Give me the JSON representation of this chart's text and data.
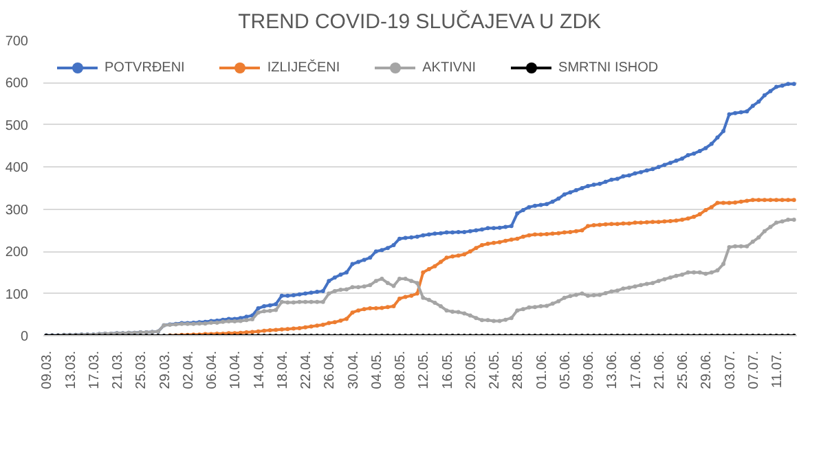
{
  "chart_data": {
    "type": "line",
    "title": "TREND COVID-19 SLUČAJEVA U ZDK",
    "categories": [
      "09.03.",
      null,
      null,
      null,
      "13.03.",
      null,
      null,
      null,
      "17.03.",
      null,
      null,
      null,
      "21.03.",
      null,
      null,
      null,
      "25.03.",
      null,
      null,
      null,
      "29.03.",
      null,
      null,
      null,
      "02.04.",
      null,
      null,
      null,
      "06.04.",
      null,
      null,
      null,
      "10.04.",
      null,
      null,
      null,
      "14.04.",
      null,
      null,
      null,
      "18.04.",
      null,
      null,
      null,
      "22.04.",
      null,
      null,
      null,
      "26.04.",
      null,
      null,
      null,
      "30.04.",
      null,
      null,
      null,
      "04.05.",
      null,
      null,
      null,
      "08.05.",
      null,
      null,
      null,
      "12.05.",
      null,
      null,
      null,
      "16.05.",
      null,
      null,
      null,
      "20.05.",
      null,
      null,
      null,
      "24.05.",
      null,
      null,
      null,
      "28.05.",
      null,
      null,
      null,
      "01.06.",
      null,
      null,
      null,
      "05.06.",
      null,
      null,
      null,
      "09.06.",
      null,
      null,
      null,
      "13.06.",
      null,
      null,
      null,
      "17.06.",
      null,
      null,
      null,
      "21.06.",
      null,
      null,
      null,
      "25.06.",
      null,
      null,
      null,
      "29.06.",
      null,
      null,
      null,
      "03.07.",
      null,
      null,
      null,
      "07.07.",
      null,
      null,
      null,
      "11.07.",
      null,
      null,
      null
    ],
    "series": [
      {
        "name": "POTVRĐENI",
        "color": "#4472c4",
        "values": [
          1,
          1,
          1,
          2,
          2,
          2,
          3,
          3,
          3,
          4,
          5,
          5,
          6,
          6,
          7,
          7,
          8,
          8,
          9,
          10,
          25,
          27,
          28,
          30,
          30,
          31,
          32,
          33,
          35,
          36,
          38,
          40,
          40,
          42,
          45,
          48,
          65,
          70,
          72,
          75,
          95,
          95,
          96,
          98,
          100,
          102,
          104,
          106,
          130,
          138,
          145,
          150,
          170,
          175,
          180,
          185,
          200,
          203,
          208,
          215,
          230,
          232,
          233,
          235,
          238,
          240,
          242,
          243,
          245,
          245,
          246,
          246,
          248,
          250,
          252,
          255,
          255,
          256,
          258,
          260,
          290,
          298,
          305,
          308,
          310,
          312,
          318,
          325,
          335,
          340,
          345,
          350,
          355,
          358,
          360,
          365,
          370,
          372,
          378,
          380,
          385,
          388,
          392,
          395,
          400,
          405,
          410,
          415,
          420,
          428,
          432,
          438,
          445,
          455,
          470,
          485,
          525,
          528,
          530,
          532,
          545,
          555,
          570,
          580,
          590,
          593,
          597,
          597
        ]
      },
      {
        "name": "IZLIJEČENI",
        "color": "#ed7d31",
        "values": [
          null,
          null,
          null,
          null,
          null,
          null,
          null,
          null,
          null,
          null,
          null,
          null,
          null,
          null,
          null,
          null,
          null,
          null,
          null,
          null,
          null,
          1,
          1,
          2,
          2,
          3,
          3,
          4,
          4,
          5,
          5,
          6,
          6,
          7,
          8,
          9,
          10,
          12,
          13,
          14,
          15,
          16,
          17,
          18,
          20,
          22,
          24,
          26,
          30,
          32,
          36,
          40,
          55,
          60,
          63,
          65,
          65,
          66,
          68,
          70,
          88,
          92,
          95,
          100,
          150,
          158,
          165,
          175,
          185,
          188,
          190,
          193,
          200,
          208,
          215,
          218,
          220,
          222,
          225,
          228,
          230,
          235,
          238,
          240,
          240,
          241,
          242,
          243,
          245,
          246,
          248,
          250,
          260,
          262,
          263,
          264,
          265,
          265,
          266,
          266,
          268,
          268,
          269,
          270,
          270,
          271,
          272,
          273,
          275,
          278,
          282,
          288,
          298,
          305,
          315,
          315,
          315,
          316,
          318,
          320,
          322,
          322,
          322,
          322,
          322,
          322,
          322,
          322
        ]
      },
      {
        "name": "AKTIVNI",
        "color": "#a5a5a5",
        "values": [
          1,
          1,
          1,
          2,
          2,
          2,
          3,
          3,
          3,
          4,
          5,
          5,
          6,
          6,
          7,
          7,
          8,
          8,
          9,
          10,
          25,
          26,
          27,
          28,
          28,
          28,
          29,
          29,
          31,
          31,
          33,
          34,
          34,
          35,
          37,
          39,
          55,
          58,
          59,
          61,
          80,
          79,
          79,
          80,
          80,
          80,
          80,
          80,
          100,
          106,
          109,
          110,
          115,
          115,
          117,
          120,
          130,
          135,
          125,
          118,
          135,
          135,
          130,
          125,
          90,
          85,
          78,
          70,
          60,
          57,
          56,
          53,
          48,
          42,
          37,
          37,
          35,
          35,
          38,
          42,
          60,
          63,
          67,
          68,
          70,
          71,
          76,
          82,
          90,
          94,
          97,
          100,
          95,
          96,
          97,
          101,
          105,
          107,
          112,
          114,
          117,
          120,
          123,
          125,
          130,
          134,
          138,
          142,
          145,
          150,
          150,
          150,
          147,
          150,
          155,
          170,
          210,
          212,
          212,
          212,
          223,
          233,
          248,
          258,
          268,
          271,
          275,
          275
        ]
      },
      {
        "name": "SMRTNI ISHOD",
        "color": "#000000",
        "values": [
          0,
          0,
          0,
          0,
          0,
          0,
          0,
          0,
          0,
          0,
          0,
          0,
          0,
          0,
          0,
          0,
          0,
          0,
          0,
          0,
          0,
          0,
          0,
          0,
          0,
          0,
          0,
          0,
          0,
          0,
          0,
          0,
          0,
          0,
          0,
          0,
          0,
          0,
          0,
          0,
          0,
          0,
          0,
          0,
          0,
          0,
          0,
          0,
          0,
          0,
          0,
          0,
          0,
          0,
          0,
          0,
          0,
          0,
          0,
          0,
          0,
          0,
          0,
          0,
          0,
          0,
          0,
          0,
          0,
          0,
          0,
          0,
          0,
          0,
          0,
          0,
          0,
          0,
          0,
          0,
          0,
          0,
          0,
          0,
          0,
          0,
          0,
          0,
          0,
          0,
          0,
          0,
          0,
          0,
          0,
          0,
          0,
          0,
          0,
          0,
          0,
          0,
          0,
          0,
          0,
          0,
          0,
          0,
          0,
          0,
          0,
          0,
          0,
          0,
          0,
          0,
          0,
          0,
          0,
          0,
          0,
          0,
          0,
          0,
          0,
          0,
          0,
          0
        ]
      }
    ],
    "ylim": [
      0,
      700
    ],
    "yticks": [
      0,
      100,
      200,
      300,
      400,
      500,
      600,
      700
    ],
    "grid": "y",
    "legend": "top left",
    "marker": "circle",
    "line_style": "solid"
  }
}
